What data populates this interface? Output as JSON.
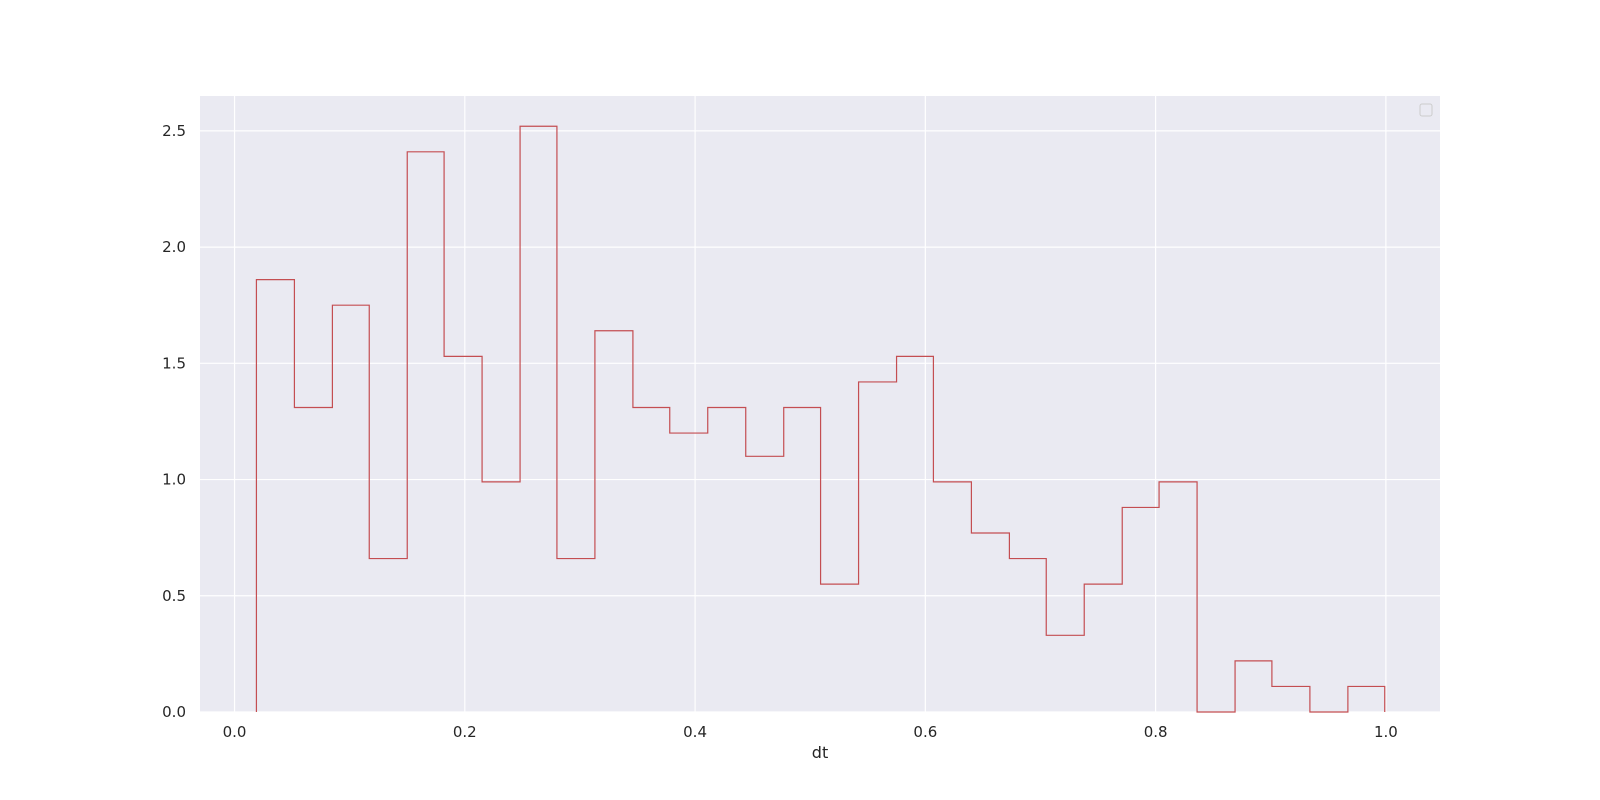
{
  "chart_data": {
    "type": "histogram",
    "xlabel": "dt",
    "ylabel": "",
    "title": "",
    "xlim": [
      -0.03,
      1.047
    ],
    "ylim": [
      0,
      2.65
    ],
    "grid": true,
    "legend": "top-right (empty box)",
    "xticks": [
      0.0,
      0.2,
      0.4,
      0.6,
      0.8,
      1.0
    ],
    "xtick_labels": [
      "0.0",
      "0.2",
      "0.4",
      "0.6",
      "0.8",
      "1.0"
    ],
    "yticks": [
      0.0,
      0.5,
      1.0,
      1.5,
      2.0,
      2.5
    ],
    "ytick_labels": [
      "0.0",
      "0.5",
      "1.0",
      "1.5",
      "2.0",
      "2.5"
    ],
    "bin_edges": [
      0.019,
      0.052,
      0.085,
      0.117,
      0.15,
      0.182,
      0.215,
      0.248,
      0.28,
      0.313,
      0.346,
      0.378,
      0.411,
      0.444,
      0.477,
      0.509,
      0.542,
      0.575,
      0.607,
      0.64,
      0.673,
      0.705,
      0.738,
      0.771,
      0.803,
      0.836,
      0.869,
      0.901,
      0.934,
      0.967,
      0.999
    ],
    "values": [
      1.86,
      1.31,
      1.75,
      0.66,
      2.41,
      1.53,
      0.99,
      2.52,
      0.66,
      1.64,
      1.31,
      1.2,
      1.31,
      1.1,
      1.31,
      0.55,
      1.42,
      1.53,
      0.99,
      0.77,
      0.66,
      0.33,
      0.55,
      0.88,
      0.99,
      0.0,
      0.22,
      0.11,
      0.0,
      0.11
    ],
    "series": [
      {
        "color": "#c44e52"
      }
    ]
  },
  "colors": {
    "plot_background": "#eaeaf2",
    "grid": "#ffffff",
    "line": "#c44e52"
  }
}
